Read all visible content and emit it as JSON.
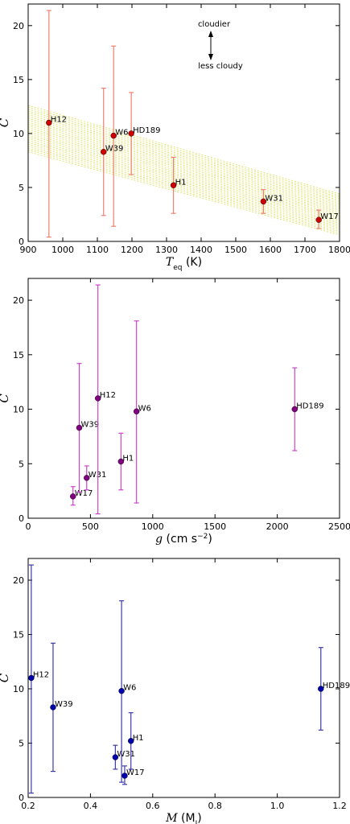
{
  "chart_data": [
    {
      "type": "scatter",
      "xlabel_math": "T",
      "xlabel_sub": "eq",
      "xlabel_unit": "(K)",
      "ylabel": "C",
      "xlim": [
        900,
        1800
      ],
      "ylim": [
        0,
        22
      ],
      "xticks": [
        900,
        1000,
        1100,
        1200,
        1300,
        1400,
        1500,
        1600,
        1700,
        1800
      ],
      "yticks": [
        0,
        5,
        10,
        15,
        20
      ],
      "point_color": "#cc0000",
      "errorbar_color": "#f08070",
      "model_band_color": "#d4d93a",
      "annotations": {
        "up": "cloudier",
        "down": "less cloudy"
      },
      "points": [
        {
          "label": "H12",
          "x": 960,
          "y": 11.0,
          "ylo": 0.4,
          "yhi": 21.4
        },
        {
          "label": "W39",
          "x": 1118,
          "y": 8.3,
          "ylo": 2.4,
          "yhi": 14.2
        },
        {
          "label": "W6",
          "x": 1147,
          "y": 9.8,
          "ylo": 1.4,
          "yhi": 18.1
        },
        {
          "label": "HD189",
          "x": 1198,
          "y": 10.0,
          "ylo": 6.2,
          "yhi": 13.8
        },
        {
          "label": "H1",
          "x": 1320,
          "y": 5.2,
          "ylo": 2.6,
          "yhi": 7.8
        },
        {
          "label": "W31",
          "x": 1580,
          "y": 3.7,
          "ylo": 2.6,
          "yhi": 4.8
        },
        {
          "label": "W17",
          "x": 1740,
          "y": 2.0,
          "ylo": 1.2,
          "yhi": 2.9
        }
      ]
    },
    {
      "type": "scatter",
      "xlabel_math": "g",
      "xlabel_unit": "(cm s",
      "xlabel_sup": "−2",
      "ylabel": "C",
      "xlim": [
        0,
        2500
      ],
      "ylim": [
        0,
        22
      ],
      "xticks": [
        0,
        500,
        1000,
        1500,
        2000,
        2500
      ],
      "yticks": [
        0,
        5,
        10,
        15,
        20
      ],
      "point_color": "#800080",
      "errorbar_color": "#cc44cc",
      "points": [
        {
          "label": "W17",
          "x": 360,
          "y": 2.0,
          "ylo": 1.2,
          "yhi": 2.9
        },
        {
          "label": "W39",
          "x": 410,
          "y": 8.3,
          "ylo": 2.4,
          "yhi": 14.2
        },
        {
          "label": "W31",
          "x": 470,
          "y": 3.7,
          "ylo": 2.6,
          "yhi": 4.8
        },
        {
          "label": "H12",
          "x": 560,
          "y": 11.0,
          "ylo": 0.4,
          "yhi": 21.4
        },
        {
          "label": "H1",
          "x": 745,
          "y": 5.2,
          "ylo": 2.6,
          "yhi": 7.8
        },
        {
          "label": "W6",
          "x": 870,
          "y": 9.8,
          "ylo": 1.4,
          "yhi": 18.1
        },
        {
          "label": "HD189",
          "x": 2140,
          "y": 10.0,
          "ylo": 6.2,
          "yhi": 13.8
        }
      ]
    },
    {
      "type": "scatter",
      "xlabel_math": "M",
      "xlabel_paren": "(M",
      "xlabel_sub": "J",
      "ylabel": "C",
      "xlim": [
        0.2,
        1.2
      ],
      "ylim": [
        0,
        22
      ],
      "xticks": [
        0.2,
        0.4,
        0.6,
        0.8,
        1.0,
        1.2
      ],
      "xticklabels": [
        "0.2",
        "0.4",
        "0.6",
        "0.8",
        "1.0",
        "1.2"
      ],
      "yticks": [
        0,
        5,
        10,
        15,
        20
      ],
      "point_color": "#0000aa",
      "errorbar_color": "#3a3aaa",
      "points": [
        {
          "label": "H12",
          "x": 0.21,
          "y": 11.0,
          "ylo": 0.4,
          "yhi": 21.4
        },
        {
          "label": "W39",
          "x": 0.28,
          "y": 8.3,
          "ylo": 2.4,
          "yhi": 14.2
        },
        {
          "label": "W31",
          "x": 0.48,
          "y": 3.7,
          "ylo": 2.6,
          "yhi": 4.8
        },
        {
          "label": "W6",
          "x": 0.5,
          "y": 9.8,
          "ylo": 1.4,
          "yhi": 18.1
        },
        {
          "label": "W17",
          "x": 0.51,
          "y": 2.0,
          "ylo": 1.2,
          "yhi": 2.9
        },
        {
          "label": "H1",
          "x": 0.53,
          "y": 5.2,
          "ylo": 2.6,
          "yhi": 7.8
        },
        {
          "label": "HD189",
          "x": 1.14,
          "y": 10.0,
          "ylo": 6.2,
          "yhi": 13.8
        }
      ]
    }
  ]
}
